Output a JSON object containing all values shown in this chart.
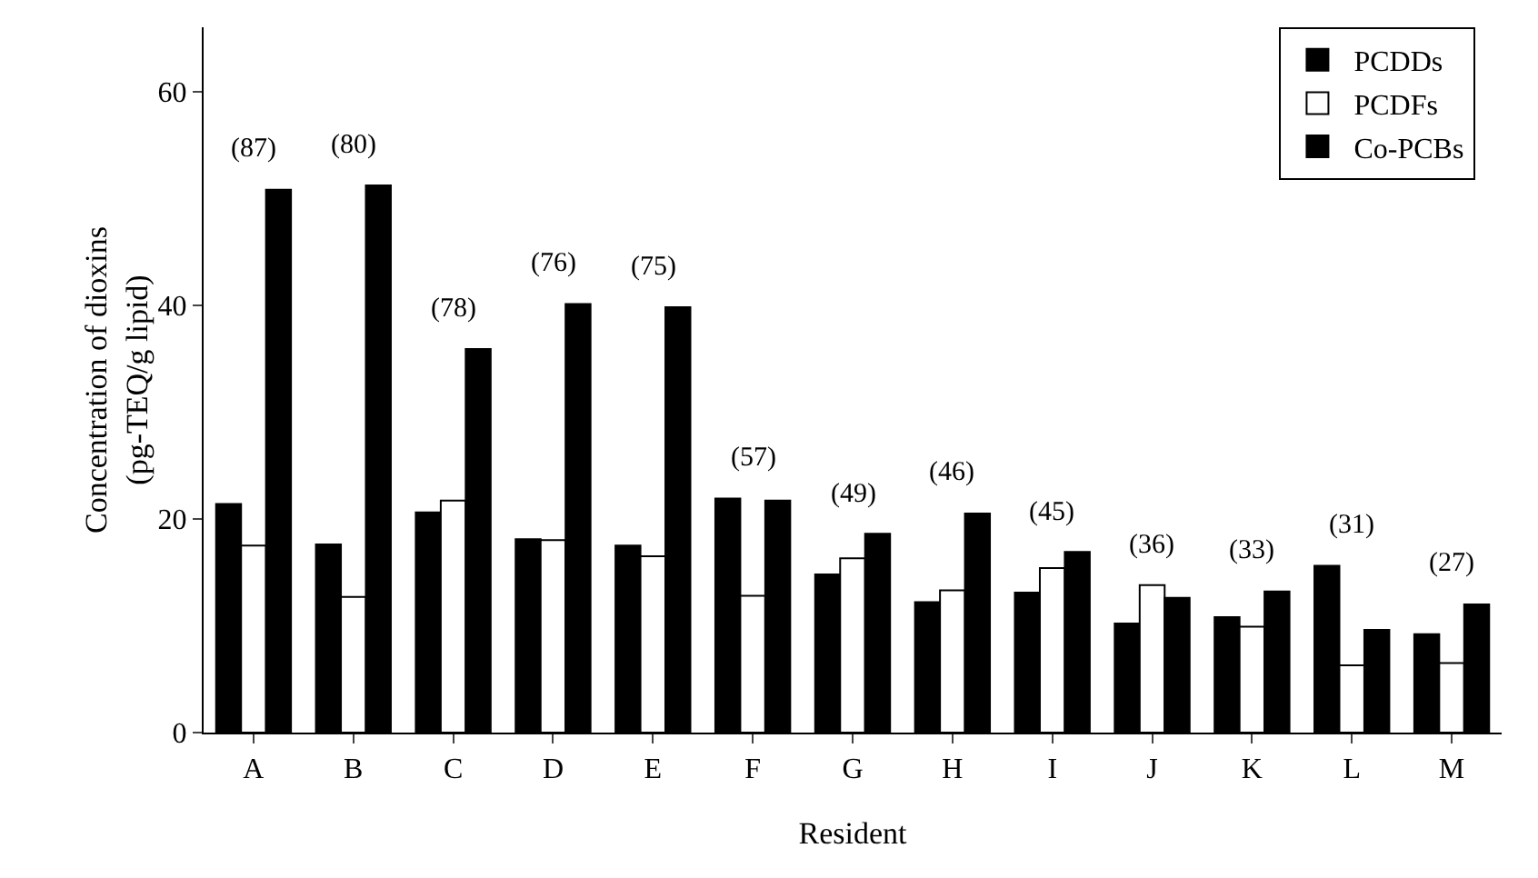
{
  "chart_data": {
    "type": "bar",
    "xlabel": "Resident",
    "ylabel": "Concentration of dioxins\n(pg-TEQ/g lipid)",
    "categories": [
      "A",
      "B",
      "C",
      "D",
      "E",
      "F",
      "G",
      "H",
      "I",
      "J",
      "K",
      "L",
      "M"
    ],
    "series": [
      {
        "name": "PCDDs",
        "color": "#000000",
        "values": [
          21.4,
          17.6,
          20.6,
          18.1,
          17.5,
          21.9,
          14.8,
          12.2,
          13.1,
          10.2,
          10.8,
          15.6,
          9.2
        ]
      },
      {
        "name": "PCDFs",
        "color": "#ffffff",
        "values": [
          17.5,
          12.7,
          21.7,
          18.0,
          16.5,
          12.8,
          16.3,
          13.3,
          15.4,
          13.8,
          9.9,
          6.3,
          6.5
        ]
      },
      {
        "name": "Co-PCBs",
        "color": "#000000",
        "values": [
          50.8,
          51.2,
          35.9,
          40.1,
          39.8,
          21.7,
          18.6,
          20.5,
          16.9,
          12.6,
          13.2,
          9.6,
          12.0
        ]
      }
    ],
    "annotations": [
      "(87)",
      "(80)",
      "(78)",
      "(76)",
      "(75)",
      "(57)",
      "(49)",
      "(46)",
      "(45)",
      "(36)",
      "(33)",
      "(31)",
      "(27)"
    ],
    "ylim": [
      0,
      66
    ],
    "yticks": [
      0,
      20,
      40,
      60
    ],
    "grid": false,
    "legend": "top right"
  }
}
